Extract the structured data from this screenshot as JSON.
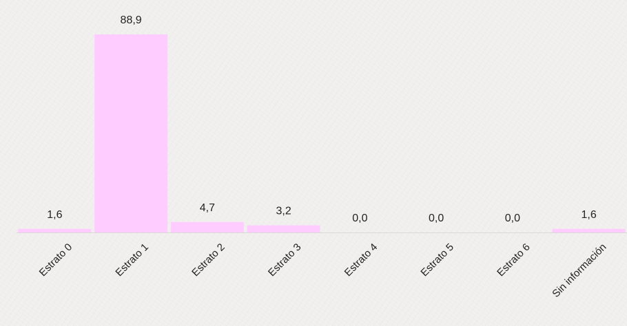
{
  "chart_data": {
    "type": "bar",
    "title": "",
    "xlabel": "",
    "ylabel": "",
    "categories": [
      "Estrato 0",
      "Estrato 1",
      "Estrato 2",
      "Estrato 3",
      "Estrato 4",
      "Estrato 5",
      "Estrato 6",
      "Sin información"
    ],
    "values": [
      1.6,
      88.9,
      4.7,
      3.2,
      0.0,
      0.0,
      0.0,
      1.6
    ],
    "value_labels": [
      "1,6",
      "88,9",
      "4,7",
      "3,2",
      "0,0",
      "0,0",
      "0,0",
      "1,6"
    ],
    "ylim": [
      0,
      100
    ],
    "grid": false,
    "legend": "none",
    "bar_color": "#ffccff"
  }
}
